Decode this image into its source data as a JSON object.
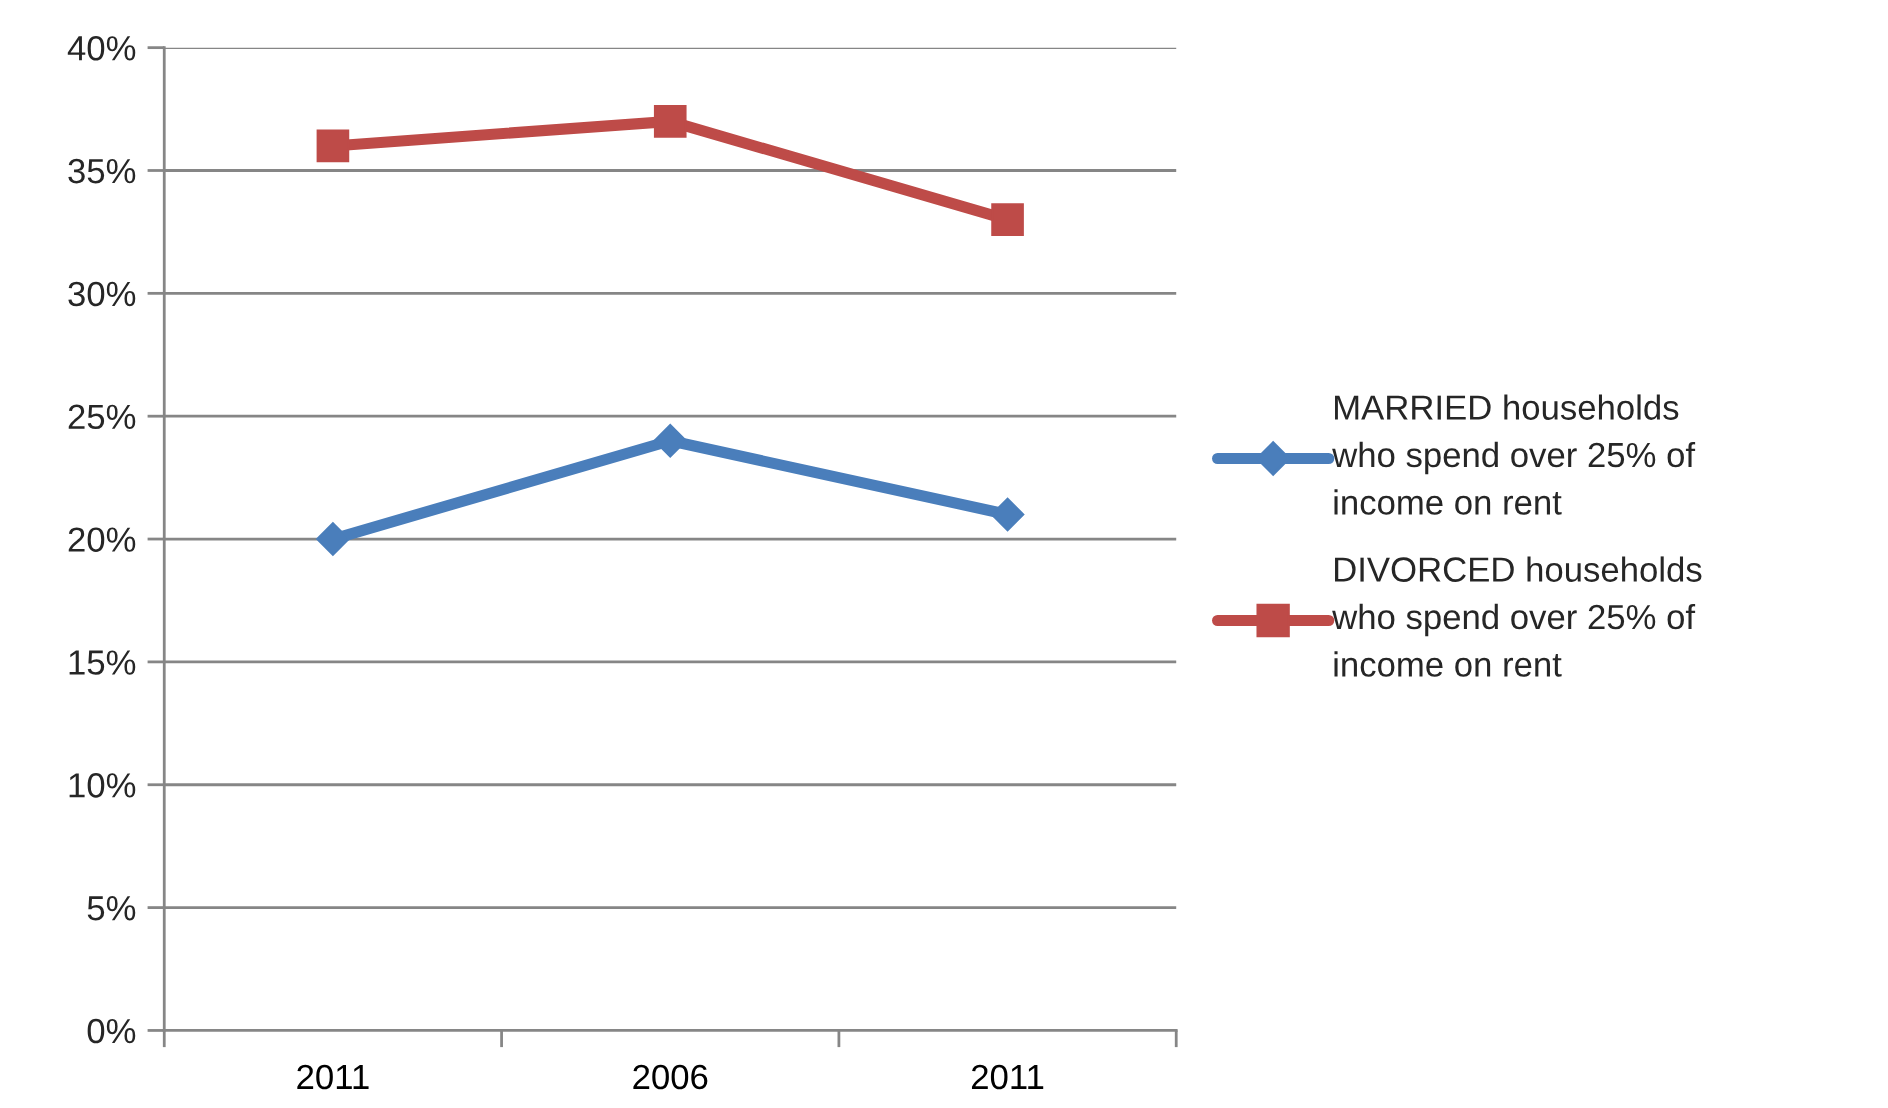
{
  "chart_data": {
    "type": "line",
    "categories": [
      "2011",
      "2006",
      "2011"
    ],
    "series": [
      {
        "name": "MARRIED households\nwho spend over 25% of\nincome on rent",
        "color": "#4a7ebb",
        "values": [
          20,
          24,
          21
        ],
        "marker": "diamond"
      },
      {
        "name": "DIVORCED households\nwho spend over 25% of\nincome on rent",
        "color": "#be4b48",
        "values": [
          36,
          37,
          33
        ],
        "marker": "square"
      }
    ],
    "ylim": [
      0,
      40
    ],
    "yticks": [
      {
        "value": 0,
        "label": "0%"
      },
      {
        "value": 5,
        "label": "5%"
      },
      {
        "value": 10,
        "label": "10%"
      },
      {
        "value": 15,
        "label": "15%"
      },
      {
        "value": 20,
        "label": "20%"
      },
      {
        "value": 25,
        "label": "25%"
      },
      {
        "value": 30,
        "label": "30%"
      },
      {
        "value": 35,
        "label": "35%"
      },
      {
        "value": 40,
        "label": "40%"
      }
    ],
    "grid": "y",
    "legend": "right",
    "line_style": "solid"
  }
}
